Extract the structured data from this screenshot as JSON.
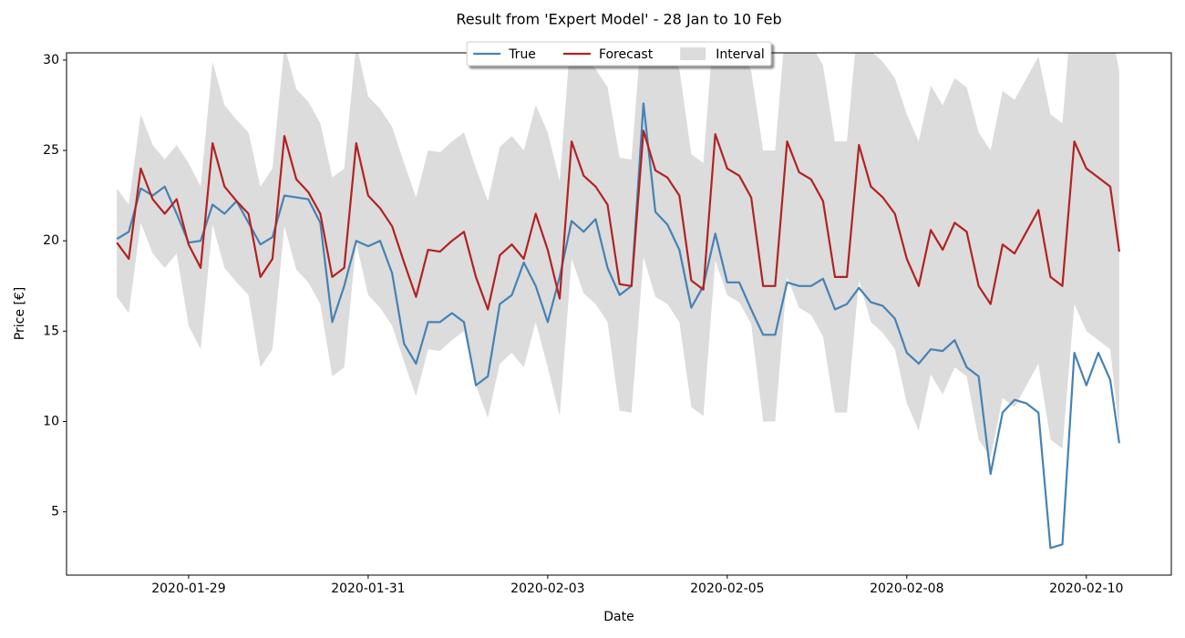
{
  "chart_data": {
    "type": "line",
    "title": "Result from 'Expert Model' - 28 Jan to 10 Feb",
    "x_label": "Date",
    "y_label": "Price [€]",
    "x": [
      0,
      4,
      8,
      12,
      16,
      20,
      24,
      28,
      32,
      36,
      40,
      44,
      48,
      52,
      56,
      60,
      64,
      68,
      72,
      76,
      80,
      84,
      88,
      92,
      96,
      100,
      104,
      108,
      112,
      116,
      120,
      124,
      128,
      132,
      136,
      140,
      144,
      148,
      152,
      156,
      160,
      164,
      168,
      172,
      176,
      180,
      184,
      188,
      192,
      196,
      200,
      204,
      208,
      212,
      216,
      220,
      224,
      228,
      232,
      236,
      240,
      244,
      248,
      252,
      256,
      260,
      264,
      268,
      272,
      276,
      280,
      284,
      288,
      292,
      296,
      300,
      304,
      308,
      312,
      316,
      320,
      324,
      328,
      332,
      335
    ],
    "xlim": [
      -16.8,
      352.4
    ],
    "xticks": [
      {
        "value": 24,
        "label": "2020-01-29"
      },
      {
        "value": 84,
        "label": "2020-01-31"
      },
      {
        "value": 144,
        "label": "2020-02-03"
      },
      {
        "value": 204,
        "label": "2020-02-05"
      },
      {
        "value": 264,
        "label": "2020-02-08"
      },
      {
        "value": 324,
        "label": "2020-02-10"
      }
    ],
    "ylim": [
      1.5,
      30.4
    ],
    "yticks": [
      5,
      10,
      15,
      20,
      25,
      30
    ],
    "legend": "upper center",
    "series": [
      {
        "name": "True",
        "color": "#4682b4",
        "values": [
          20.1,
          20.5,
          22.9,
          22.5,
          23.0,
          21.5,
          19.9,
          20.0,
          22.0,
          21.5,
          22.2,
          21.0,
          19.8,
          20.2,
          22.5,
          22.4,
          22.3,
          21.0,
          15.5,
          17.5,
          20.0,
          19.7,
          20.0,
          18.2,
          14.3,
          13.2,
          15.5,
          15.5,
          16.0,
          15.5,
          12.0,
          12.5,
          16.5,
          17.0,
          18.8,
          17.5,
          15.5,
          18.0,
          21.1,
          20.5,
          21.2,
          18.5,
          17.0,
          17.5,
          27.6,
          21.6,
          20.9,
          19.5,
          16.3,
          17.5,
          20.4,
          17.7,
          17.7,
          16.2,
          14.8,
          14.8,
          17.7,
          17.5,
          17.5,
          17.9,
          16.2,
          16.5,
          17.4,
          16.6,
          16.4,
          15.7,
          13.8,
          13.2,
          14.0,
          13.9,
          14.5,
          13.0,
          12.5,
          7.1,
          10.5,
          11.2,
          11.0,
          10.5,
          3.0,
          3.2,
          13.8,
          12.0,
          13.8,
          12.3,
          8.8
        ]
      },
      {
        "name": "Forecast",
        "color": "#b22222",
        "values": [
          19.9,
          19.0,
          24.0,
          22.3,
          21.5,
          22.3,
          19.8,
          18.5,
          25.4,
          23.0,
          22.2,
          21.5,
          18.0,
          19.0,
          25.8,
          23.4,
          22.7,
          21.5,
          18.0,
          18.5,
          25.4,
          22.5,
          21.8,
          20.8,
          18.8,
          16.9,
          19.5,
          19.4,
          20.0,
          20.5,
          18.0,
          16.2,
          19.2,
          19.8,
          19.0,
          21.5,
          19.5,
          16.8,
          25.5,
          23.6,
          23.0,
          22.0,
          17.6,
          17.5,
          26.1,
          23.9,
          23.5,
          22.5,
          17.8,
          17.3,
          25.9,
          24.0,
          23.6,
          22.4,
          17.5,
          17.5,
          25.5,
          23.8,
          23.4,
          22.2,
          18.0,
          18.0,
          25.3,
          23.0,
          22.4,
          21.5,
          19.0,
          17.5,
          20.6,
          19.5,
          21.0,
          20.5,
          17.5,
          16.5,
          19.8,
          19.3,
          20.5,
          21.7,
          18.0,
          17.5,
          25.5,
          24.0,
          23.5,
          23.0,
          19.4
        ]
      },
      {
        "name": "Interval",
        "color": "#dcdcdc",
        "lower": [
          16.9,
          16.0,
          21.0,
          19.3,
          18.5,
          19.3,
          15.3,
          14.0,
          20.9,
          18.5,
          17.7,
          17.0,
          13.0,
          14.0,
          20.8,
          18.4,
          17.7,
          16.5,
          12.5,
          13.0,
          19.9,
          17.0,
          16.3,
          15.3,
          13.3,
          11.4,
          14.0,
          13.9,
          14.5,
          15.0,
          12.0,
          10.2,
          13.2,
          13.8,
          13.0,
          15.5,
          13.0,
          10.3,
          19.0,
          17.1,
          16.5,
          15.5,
          10.6,
          10.5,
          19.1,
          16.9,
          16.5,
          15.5,
          10.8,
          10.3,
          18.9,
          17.0,
          16.6,
          15.4,
          10.0,
          10.0,
          18.0,
          16.3,
          15.9,
          14.7,
          10.5,
          10.5,
          17.8,
          15.5,
          14.9,
          14.0,
          11.0,
          9.5,
          12.6,
          11.5,
          13.0,
          12.5,
          9.0,
          8.0,
          11.3,
          10.8,
          12.0,
          13.2,
          9.0,
          8.5,
          16.5,
          15.0,
          14.5,
          14.0,
          9.4
        ],
        "upper": [
          22.9,
          22.0,
          27.0,
          25.3,
          24.5,
          25.3,
          24.3,
          23.0,
          29.9,
          27.5,
          26.7,
          26.0,
          23.0,
          24.0,
          30.8,
          28.4,
          27.7,
          26.5,
          23.5,
          24.0,
          30.9,
          28.0,
          27.3,
          26.3,
          24.3,
          22.4,
          25.0,
          24.9,
          25.5,
          26.0,
          24.0,
          22.2,
          25.2,
          25.8,
          25.0,
          27.5,
          26.0,
          23.3,
          32.0,
          30.1,
          29.5,
          28.5,
          24.6,
          24.5,
          33.1,
          30.9,
          30.5,
          29.5,
          24.8,
          24.3,
          32.9,
          31.0,
          30.6,
          29.4,
          25.0,
          25.0,
          33.0,
          31.3,
          30.9,
          29.7,
          25.5,
          25.5,
          32.8,
          30.5,
          29.9,
          29.0,
          27.0,
          25.5,
          28.6,
          27.5,
          29.0,
          28.5,
          26.0,
          25.0,
          28.3,
          27.8,
          29.0,
          30.2,
          27.0,
          26.5,
          34.5,
          33.0,
          32.5,
          32.0,
          29.4
        ]
      }
    ]
  }
}
